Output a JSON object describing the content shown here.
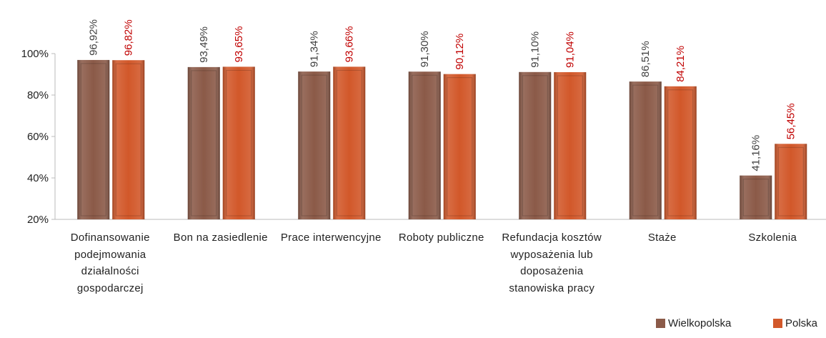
{
  "chart_data": {
    "type": "bar",
    "categories": [
      "Dofinansowanie podejmowania działalności gospodarczej",
      "Bon na zasiedlenie",
      "Prace interwencyjne",
      "Roboty publiczne",
      "Refundacja kosztów wyposażenia lub doposażenia stanowiska pracy",
      "Staże",
      "Szkolenia"
    ],
    "series": [
      {
        "name": "Wielkopolska",
        "color": "#8b5a48",
        "label_color": "#404040",
        "values": [
          96.92,
          93.49,
          91.34,
          91.3,
          91.1,
          86.51,
          41.16
        ],
        "value_labels": [
          "96,92%",
          "93,49%",
          "91,34%",
          "91,30%",
          "91,10%",
          "86,51%",
          "41,16%"
        ]
      },
      {
        "name": "Polska",
        "color": "#d2582a",
        "label_color": "#c00000",
        "values": [
          96.82,
          93.65,
          93.66,
          90.12,
          91.04,
          84.21,
          56.45
        ],
        "value_labels": [
          "96,82%",
          "93,65%",
          "93,66%",
          "90,12%",
          "91,04%",
          "84,21%",
          "56,45%"
        ]
      }
    ],
    "ylim": [
      20,
      100
    ],
    "yticks": [
      {
        "value": 20,
        "label": "20%"
      },
      {
        "value": 40,
        "label": "40%"
      },
      {
        "value": 60,
        "label": "60%"
      },
      {
        "value": 80,
        "label": "80%"
      },
      {
        "value": 100,
        "label": "100%"
      }
    ],
    "grid": false,
    "legend": "bottom-right"
  }
}
